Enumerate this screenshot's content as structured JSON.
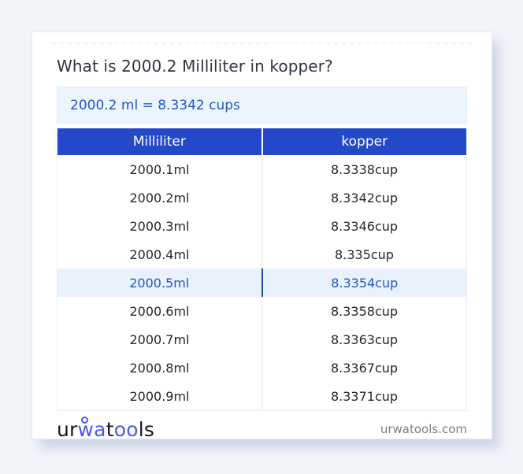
{
  "title": "What is 2000.2 Milliliter in kopper?",
  "result": "2000.2 ml = 8.3342 cups",
  "table": {
    "headers": [
      "Milliliter",
      "kopper"
    ],
    "rows": [
      {
        "ml": "2000.1ml",
        "cup": "8.3338cup",
        "highlighted": false
      },
      {
        "ml": "2000.2ml",
        "cup": "8.3342cup",
        "highlighted": false
      },
      {
        "ml": "2000.3ml",
        "cup": "8.3346cup",
        "highlighted": false
      },
      {
        "ml": "2000.4ml",
        "cup": "8.335cup",
        "highlighted": false
      },
      {
        "ml": "2000.5ml",
        "cup": "8.3354cup",
        "highlighted": true
      },
      {
        "ml": "2000.6ml",
        "cup": "8.3358cup",
        "highlighted": false
      },
      {
        "ml": "2000.7ml",
        "cup": "8.3363cup",
        "highlighted": false
      },
      {
        "ml": "2000.8ml",
        "cup": "8.3367cup",
        "highlighted": false
      },
      {
        "ml": "2000.9ml",
        "cup": "8.3371cup",
        "highlighted": false
      }
    ]
  },
  "footer": {
    "logo_parts": [
      {
        "text": "ur",
        "color": "#17171c"
      },
      {
        "text": "wa",
        "color": "#4a58f0"
      },
      {
        "text": "t",
        "color": "#17171c"
      },
      {
        "text": "oo",
        "color": "#4a58f0"
      },
      {
        "text": "ls",
        "color": "#17171c"
      }
    ],
    "site": "urwatools.com"
  },
  "colors": {
    "page_background": "#f1f4f9",
    "header_blue": "#2348c8",
    "result_box_background": "#ecf4fc",
    "result_text": "#2457c5",
    "highlight_row_background": "#e9f2fc",
    "highlight_text": "#2158c7",
    "logo_blue": "#4a58f0"
  }
}
